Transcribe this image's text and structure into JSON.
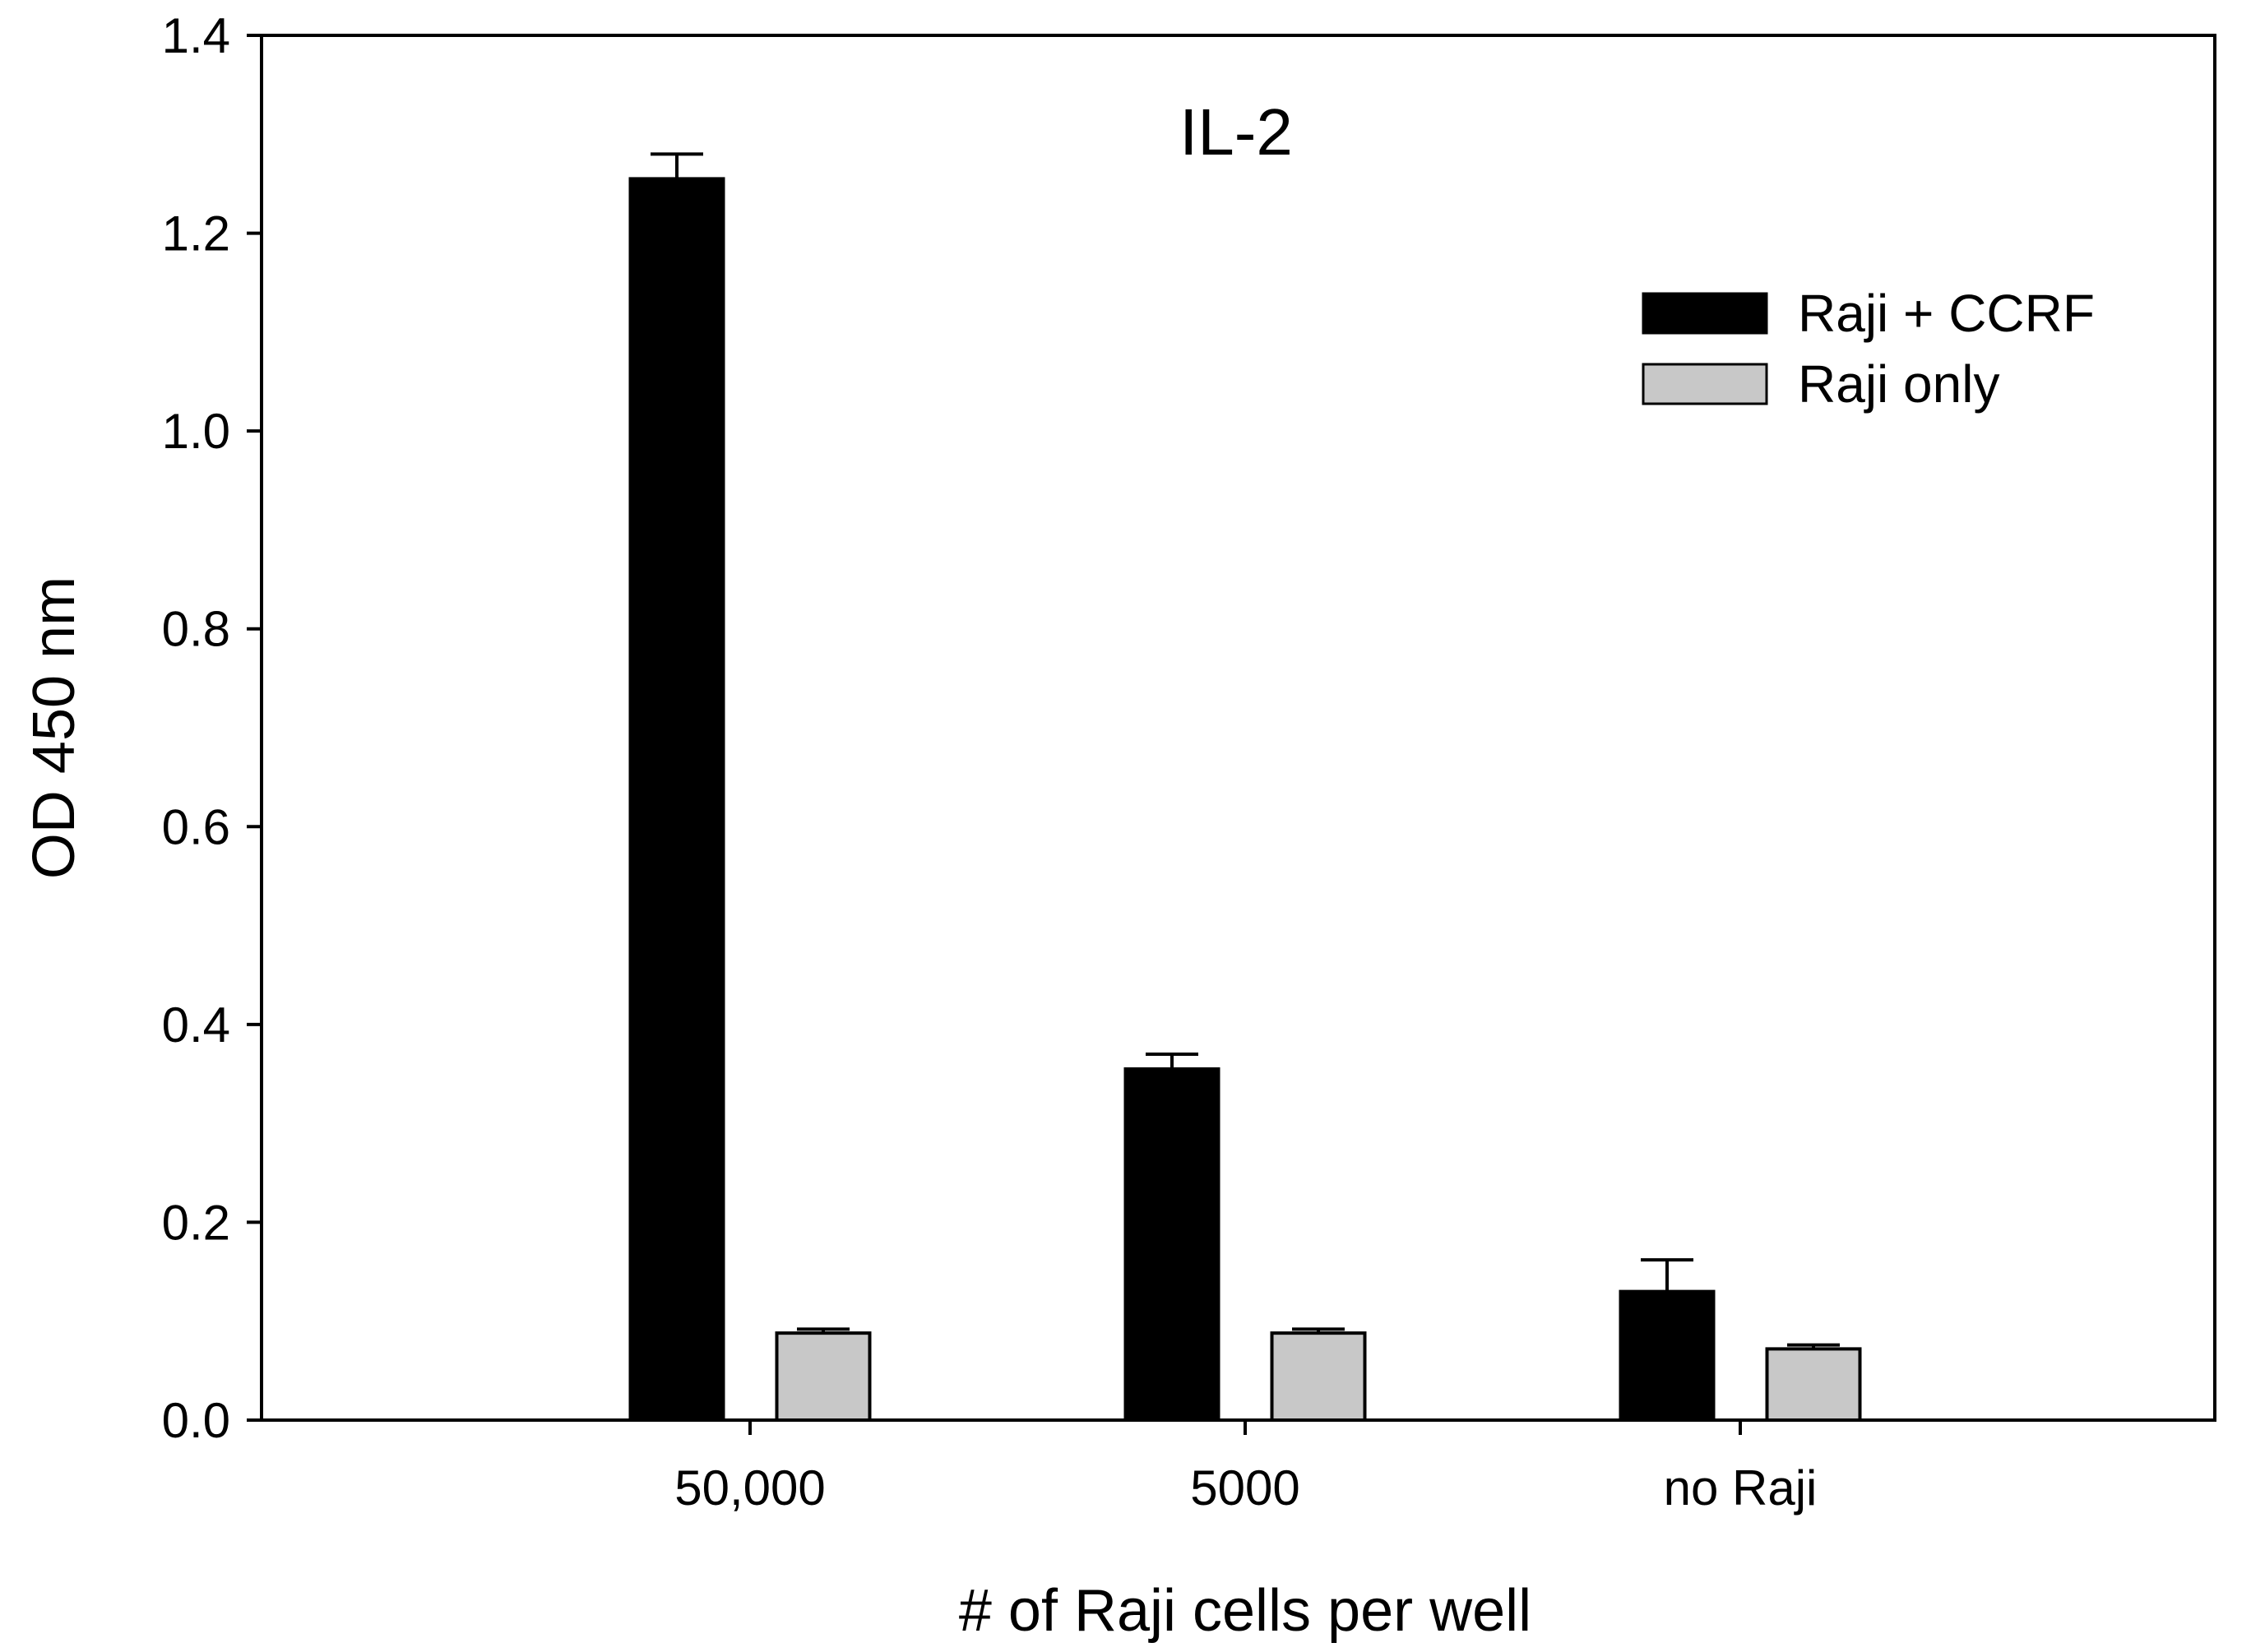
{
  "chart_data": {
    "type": "bar",
    "title": "IL-2",
    "xlabel": "# of Raji cells per well",
    "ylabel": "OD 450 nm",
    "ylim": [
      0,
      1.4
    ],
    "yticks": [
      "0.0",
      "0.2",
      "0.4",
      "0.6",
      "0.8",
      "1.0",
      "1.2",
      "1.4"
    ],
    "categories": [
      "50,000",
      "5000",
      "no Raji"
    ],
    "series": [
      {
        "name": "Raji + CCRF",
        "color": "#000000",
        "values": [
          1.255,
          0.355,
          0.13
        ],
        "errors": [
          0.025,
          0.015,
          0.032
        ]
      },
      {
        "name": "Raji only",
        "color": "#c8c8c8",
        "values": [
          0.088,
          0.088,
          0.072
        ],
        "errors": [
          0.004,
          0.004,
          0.004
        ]
      }
    ],
    "grid": false,
    "legend_position": "top-right"
  }
}
